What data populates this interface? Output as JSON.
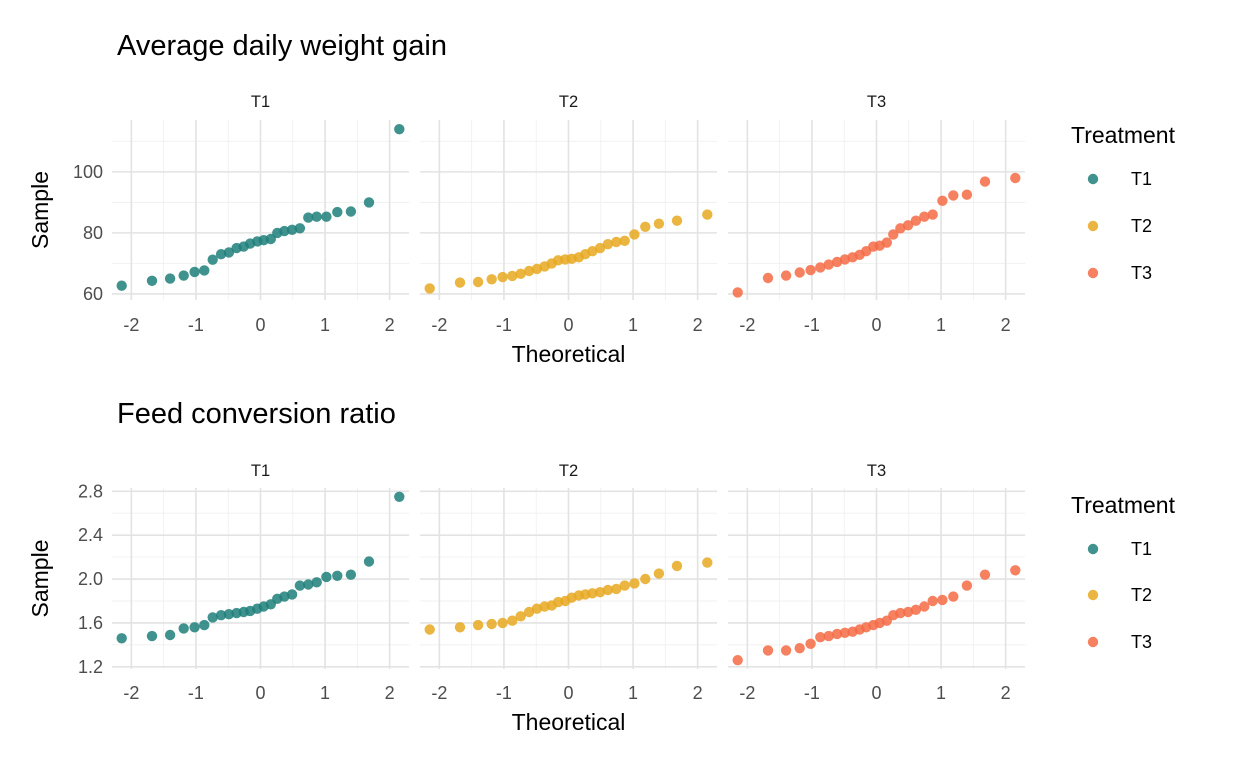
{
  "chart_data": [
    {
      "type": "scatter",
      "title": "Average daily weight gain",
      "xlabel": "Theoretical",
      "ylabel": "Sample",
      "xlim": [
        -2.3,
        2.3
      ],
      "ylim": [
        58,
        117
      ],
      "x_ticks": [
        -2,
        -1,
        0,
        1,
        2
      ],
      "y_ticks": [
        60,
        80,
        100
      ],
      "grid": true,
      "facets": [
        "T1",
        "T2",
        "T3"
      ],
      "legend": {
        "title": "Treatment",
        "position": "right",
        "entries": [
          "T1",
          "T2",
          "T3"
        ]
      },
      "series": [
        {
          "name": "T1",
          "color": "#1f7f7a",
          "x": [
            -2.15,
            -1.68,
            -1.4,
            -1.19,
            -1.02,
            -0.87,
            -0.74,
            -0.61,
            -0.49,
            -0.37,
            -0.26,
            -0.16,
            -0.05,
            0.05,
            0.16,
            0.26,
            0.37,
            0.49,
            0.61,
            0.74,
            0.87,
            1.02,
            1.19,
            1.4,
            1.68,
            2.15
          ],
          "y": [
            62.7,
            64.3,
            65.0,
            66.0,
            67.2,
            67.7,
            71.2,
            73.0,
            73.6,
            75.0,
            75.5,
            76.5,
            77.2,
            77.6,
            78.0,
            80.0,
            80.6,
            81.0,
            81.5,
            85.0,
            85.3,
            85.3,
            86.8,
            87.0,
            90.0,
            114.0
          ]
        },
        {
          "name": "T2",
          "color": "#e8a820",
          "x": [
            -2.15,
            -1.68,
            -1.4,
            -1.19,
            -1.02,
            -0.87,
            -0.74,
            -0.61,
            -0.49,
            -0.37,
            -0.26,
            -0.16,
            -0.05,
            0.05,
            0.16,
            0.26,
            0.37,
            0.49,
            0.61,
            0.74,
            0.87,
            1.02,
            1.19,
            1.4,
            1.68,
            2.15
          ],
          "y": [
            61.8,
            63.7,
            63.9,
            64.8,
            65.5,
            65.9,
            66.6,
            67.5,
            68.2,
            69.0,
            70.0,
            71.0,
            71.3,
            71.5,
            72.0,
            73.0,
            74.0,
            75.0,
            76.3,
            77.0,
            77.4,
            79.5,
            82.0,
            83.0,
            84.0,
            86.0
          ]
        },
        {
          "name": "T3",
          "color": "#f56b45",
          "x": [
            -2.15,
            -1.68,
            -1.4,
            -1.19,
            -1.02,
            -0.87,
            -0.74,
            -0.61,
            -0.49,
            -0.37,
            -0.26,
            -0.16,
            -0.05,
            0.05,
            0.16,
            0.26,
            0.37,
            0.49,
            0.61,
            0.74,
            0.87,
            1.02,
            1.19,
            1.4,
            1.68,
            2.15
          ],
          "y": [
            60.5,
            65.2,
            66.0,
            67.0,
            67.8,
            68.7,
            69.6,
            70.5,
            71.3,
            72.0,
            72.8,
            74.0,
            75.5,
            75.8,
            76.8,
            79.5,
            81.5,
            82.5,
            84.0,
            85.3,
            86.0,
            90.5,
            92.3,
            92.5,
            96.8,
            98.0
          ]
        }
      ]
    },
    {
      "type": "scatter",
      "title": "Feed conversion ratio",
      "xlabel": "Theoretical",
      "ylabel": "Sample",
      "xlim": [
        -2.3,
        2.3
      ],
      "ylim": [
        1.18,
        2.83
      ],
      "x_ticks": [
        -2,
        -1,
        0,
        1,
        2
      ],
      "y_ticks": [
        1.2,
        1.6,
        2.0,
        2.4,
        2.8
      ],
      "grid": true,
      "facets": [
        "T1",
        "T2",
        "T3"
      ],
      "legend": {
        "title": "Treatment",
        "position": "right",
        "entries": [
          "T1",
          "T2",
          "T3"
        ]
      },
      "series": [
        {
          "name": "T1",
          "color": "#1f7f7a",
          "x": [
            -2.15,
            -1.68,
            -1.4,
            -1.19,
            -1.02,
            -0.87,
            -0.74,
            -0.61,
            -0.49,
            -0.37,
            -0.26,
            -0.16,
            -0.05,
            0.05,
            0.16,
            0.26,
            0.37,
            0.49,
            0.61,
            0.74,
            0.87,
            1.02,
            1.19,
            1.4,
            1.68,
            2.15
          ],
          "y": [
            1.46,
            1.48,
            1.49,
            1.55,
            1.56,
            1.58,
            1.65,
            1.67,
            1.68,
            1.69,
            1.7,
            1.71,
            1.73,
            1.75,
            1.77,
            1.82,
            1.84,
            1.86,
            1.94,
            1.95,
            1.97,
            2.02,
            2.03,
            2.04,
            2.16,
            2.75
          ]
        },
        {
          "name": "T2",
          "color": "#e8a820",
          "x": [
            -2.15,
            -1.68,
            -1.4,
            -1.19,
            -1.02,
            -0.87,
            -0.74,
            -0.61,
            -0.49,
            -0.37,
            -0.26,
            -0.16,
            -0.05,
            0.05,
            0.16,
            0.26,
            0.37,
            0.49,
            0.61,
            0.74,
            0.87,
            1.02,
            1.19,
            1.4,
            1.68,
            2.15
          ],
          "y": [
            1.54,
            1.56,
            1.58,
            1.59,
            1.6,
            1.62,
            1.66,
            1.7,
            1.73,
            1.75,
            1.76,
            1.79,
            1.8,
            1.83,
            1.85,
            1.86,
            1.87,
            1.88,
            1.9,
            1.91,
            1.94,
            1.96,
            2.0,
            2.05,
            2.12,
            2.15
          ]
        },
        {
          "name": "T3",
          "color": "#f56b45",
          "x": [
            -2.15,
            -1.68,
            -1.4,
            -1.19,
            -1.02,
            -0.87,
            -0.74,
            -0.61,
            -0.49,
            -0.37,
            -0.26,
            -0.16,
            -0.05,
            0.05,
            0.16,
            0.26,
            0.37,
            0.49,
            0.61,
            0.74,
            0.87,
            1.02,
            1.19,
            1.4,
            1.68,
            2.15
          ],
          "y": [
            1.26,
            1.35,
            1.35,
            1.37,
            1.41,
            1.47,
            1.48,
            1.5,
            1.51,
            1.52,
            1.54,
            1.56,
            1.58,
            1.6,
            1.62,
            1.67,
            1.69,
            1.7,
            1.72,
            1.75,
            1.8,
            1.81,
            1.84,
            1.94,
            2.04,
            2.08
          ]
        }
      ]
    }
  ]
}
